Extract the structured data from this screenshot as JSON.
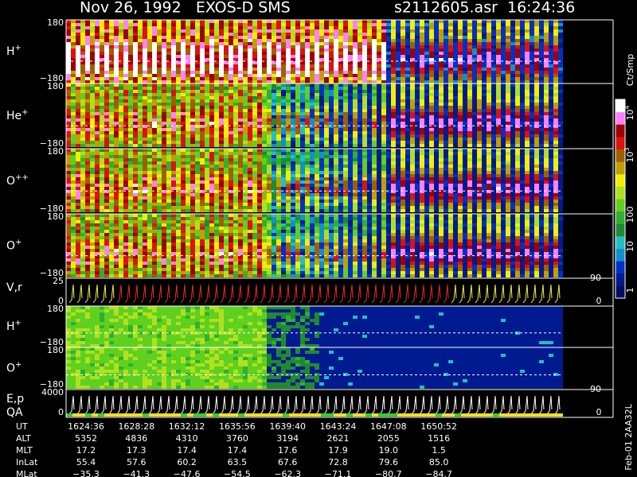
{
  "header": {
    "title": "Nov 26, 1992   EXOS-D SMS",
    "file": "s2112605.asr  16:24:36"
  },
  "panels": [
    {
      "name": "H",
      "charge": "+",
      "top": "180",
      "bottom": "−180"
    },
    {
      "name": "He",
      "charge": "+",
      "top": "180",
      "bottom": "−180"
    },
    {
      "name": "O",
      "charge": "++",
      "top": "180",
      "bottom": "−180"
    },
    {
      "name": "O",
      "charge": "+",
      "top": "180",
      "bottom": "−180"
    },
    {
      "name": "V,r",
      "top": "25",
      "bottom": "0",
      "right_top": "90",
      "right_bottom": "0"
    },
    {
      "name": "H",
      "charge": "+",
      "top": "180",
      "bottom": "−180"
    },
    {
      "name": "O",
      "charge": "+",
      "top": "180",
      "bottom": "−180"
    },
    {
      "name": "E,p",
      "sub": "QA",
      "top": "4000",
      "bottom": "0",
      "right_top": "90",
      "right_bottom": "0"
    }
  ],
  "colorbar": {
    "unit": "Ct/Smp",
    "labels": [
      {
        "base": "10",
        "exp": "4"
      },
      {
        "base": "10",
        "exp": "3"
      },
      {
        "base": "100"
      },
      {
        "base": "10"
      },
      {
        "base": "1"
      }
    ]
  },
  "footer": "Feb-01 2AA32L",
  "table": {
    "rows": [
      {
        "label": "UT",
        "values": [
          "1624:36",
          "1628:28",
          "1632:12",
          "1635:56",
          "1639:40",
          "1643:24",
          "1647:08",
          "1650:52"
        ]
      },
      {
        "label": "ALT",
        "values": [
          "5352",
          "4836",
          "4310",
          "3760",
          "3194",
          "2621",
          "2055",
          "1516"
        ]
      },
      {
        "label": "MLT",
        "values": [
          "17.2",
          "17.3",
          "17.4",
          "17.4",
          "17.6",
          "17.9",
          "19.0",
          "1.5"
        ]
      },
      {
        "label": "InLat",
        "values": [
          "55.4",
          "57.6",
          "60.2",
          "63.5",
          "67.6",
          "72.8",
          "79.6",
          "85.0"
        ]
      },
      {
        "label": "MLat",
        "values": [
          "−35.3",
          "−41.3",
          "−47.6",
          "−54.5",
          "−62.3",
          "−71.1",
          "−80.7",
          "−84.7"
        ]
      }
    ]
  }
}
